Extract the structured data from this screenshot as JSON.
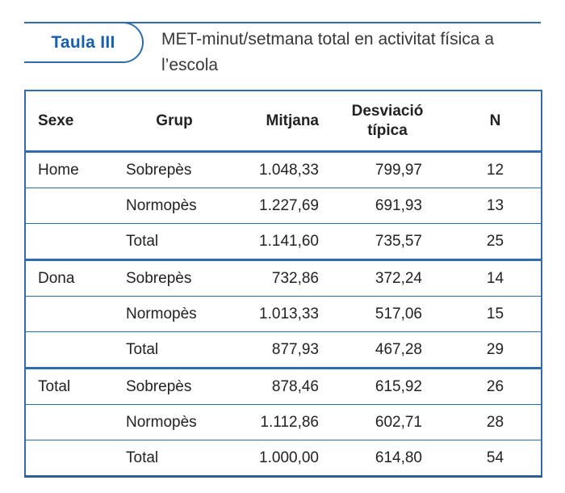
{
  "colors": {
    "accent_blue": "#1a5fae",
    "rule_blue": "#2e6cab",
    "text": "#222222"
  },
  "header": {
    "tab_label": "Taula III",
    "title": "MET-minut/setmana total en activitat física a l’escola"
  },
  "table": {
    "columns": [
      "Sexe",
      "Grup",
      "Mitjana",
      "Desviació típica",
      "N"
    ],
    "rows": [
      {
        "sexe": "Home",
        "grup": "Sobrepès",
        "mitjana": "1.048,33",
        "desviacio": "799,97",
        "n": "12"
      },
      {
        "sexe": "",
        "grup": "Normopès",
        "mitjana": "1.227,69",
        "desviacio": "691,93",
        "n": "13"
      },
      {
        "sexe": "",
        "grup": "Total",
        "mitjana": "1.141,60",
        "desviacio": "735,57",
        "n": "25"
      },
      {
        "sexe": "Dona",
        "grup": "Sobrepès",
        "mitjana": "732,86",
        "desviacio": "372,24",
        "n": "14"
      },
      {
        "sexe": "",
        "grup": "Normopès",
        "mitjana": "1.013,33",
        "desviacio": "517,06",
        "n": "15"
      },
      {
        "sexe": "",
        "grup": "Total",
        "mitjana": "877,93",
        "desviacio": "467,28",
        "n": "29"
      },
      {
        "sexe": "Total",
        "grup": "Sobrepès",
        "mitjana": "878,46",
        "desviacio": "615,92",
        "n": "26"
      },
      {
        "sexe": "",
        "grup": "Normopès",
        "mitjana": "1.112,86",
        "desviacio": "602,71",
        "n": "28"
      },
      {
        "sexe": "",
        "grup": "Total",
        "mitjana": "1.000,00",
        "desviacio": "614,80",
        "n": "54"
      }
    ]
  }
}
